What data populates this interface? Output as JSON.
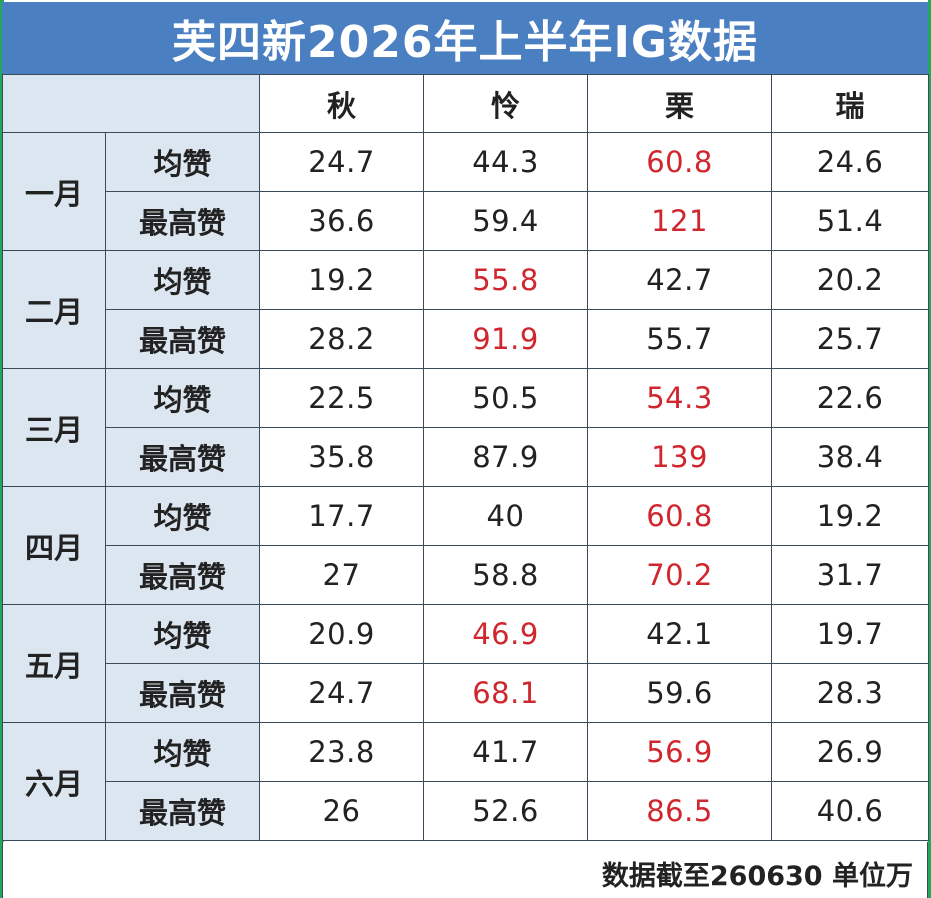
{
  "title": "芙四新2026年上半年IG数据",
  "columns": [
    "秋",
    "怜",
    "栗",
    "瑞"
  ],
  "metrics": {
    "avg": "均赞",
    "max": "最高赞"
  },
  "months": [
    {
      "label": "一月",
      "avg": [
        "24.7",
        "44.3",
        "60.8",
        "24.6"
      ],
      "avg_hi": 2,
      "max": [
        "36.6",
        "59.4",
        "121",
        "51.4"
      ],
      "max_hi": 2
    },
    {
      "label": "二月",
      "avg": [
        "19.2",
        "55.8",
        "42.7",
        "20.2"
      ],
      "avg_hi": 1,
      "max": [
        "28.2",
        "91.9",
        "55.7",
        "25.7"
      ],
      "max_hi": 1
    },
    {
      "label": "三月",
      "avg": [
        "22.5",
        "50.5",
        "54.3",
        "22.6"
      ],
      "avg_hi": 2,
      "max": [
        "35.8",
        "87.9",
        "139",
        "38.4"
      ],
      "max_hi": 2
    },
    {
      "label": "四月",
      "avg": [
        "17.7",
        "40",
        "60.8",
        "19.2"
      ],
      "avg_hi": 2,
      "max": [
        "27",
        "58.8",
        "70.2",
        "31.7"
      ],
      "max_hi": 2
    },
    {
      "label": "五月",
      "avg": [
        "20.9",
        "46.9",
        "42.1",
        "19.7"
      ],
      "avg_hi": 1,
      "max": [
        "24.7",
        "68.1",
        "59.6",
        "28.3"
      ],
      "max_hi": 1
    },
    {
      "label": "六月",
      "avg": [
        "23.8",
        "41.7",
        "56.9",
        "26.9"
      ],
      "avg_hi": 2,
      "max": [
        "26",
        "52.6",
        "86.5",
        "40.6"
      ],
      "max_hi": 2
    }
  ],
  "footer_note": "数据截至260630 单位万",
  "colors": {
    "header_bg": "#4a7fc1",
    "label_bg": "#dce6f0",
    "highlight": "#d0262d",
    "edge": "#22a85a"
  }
}
